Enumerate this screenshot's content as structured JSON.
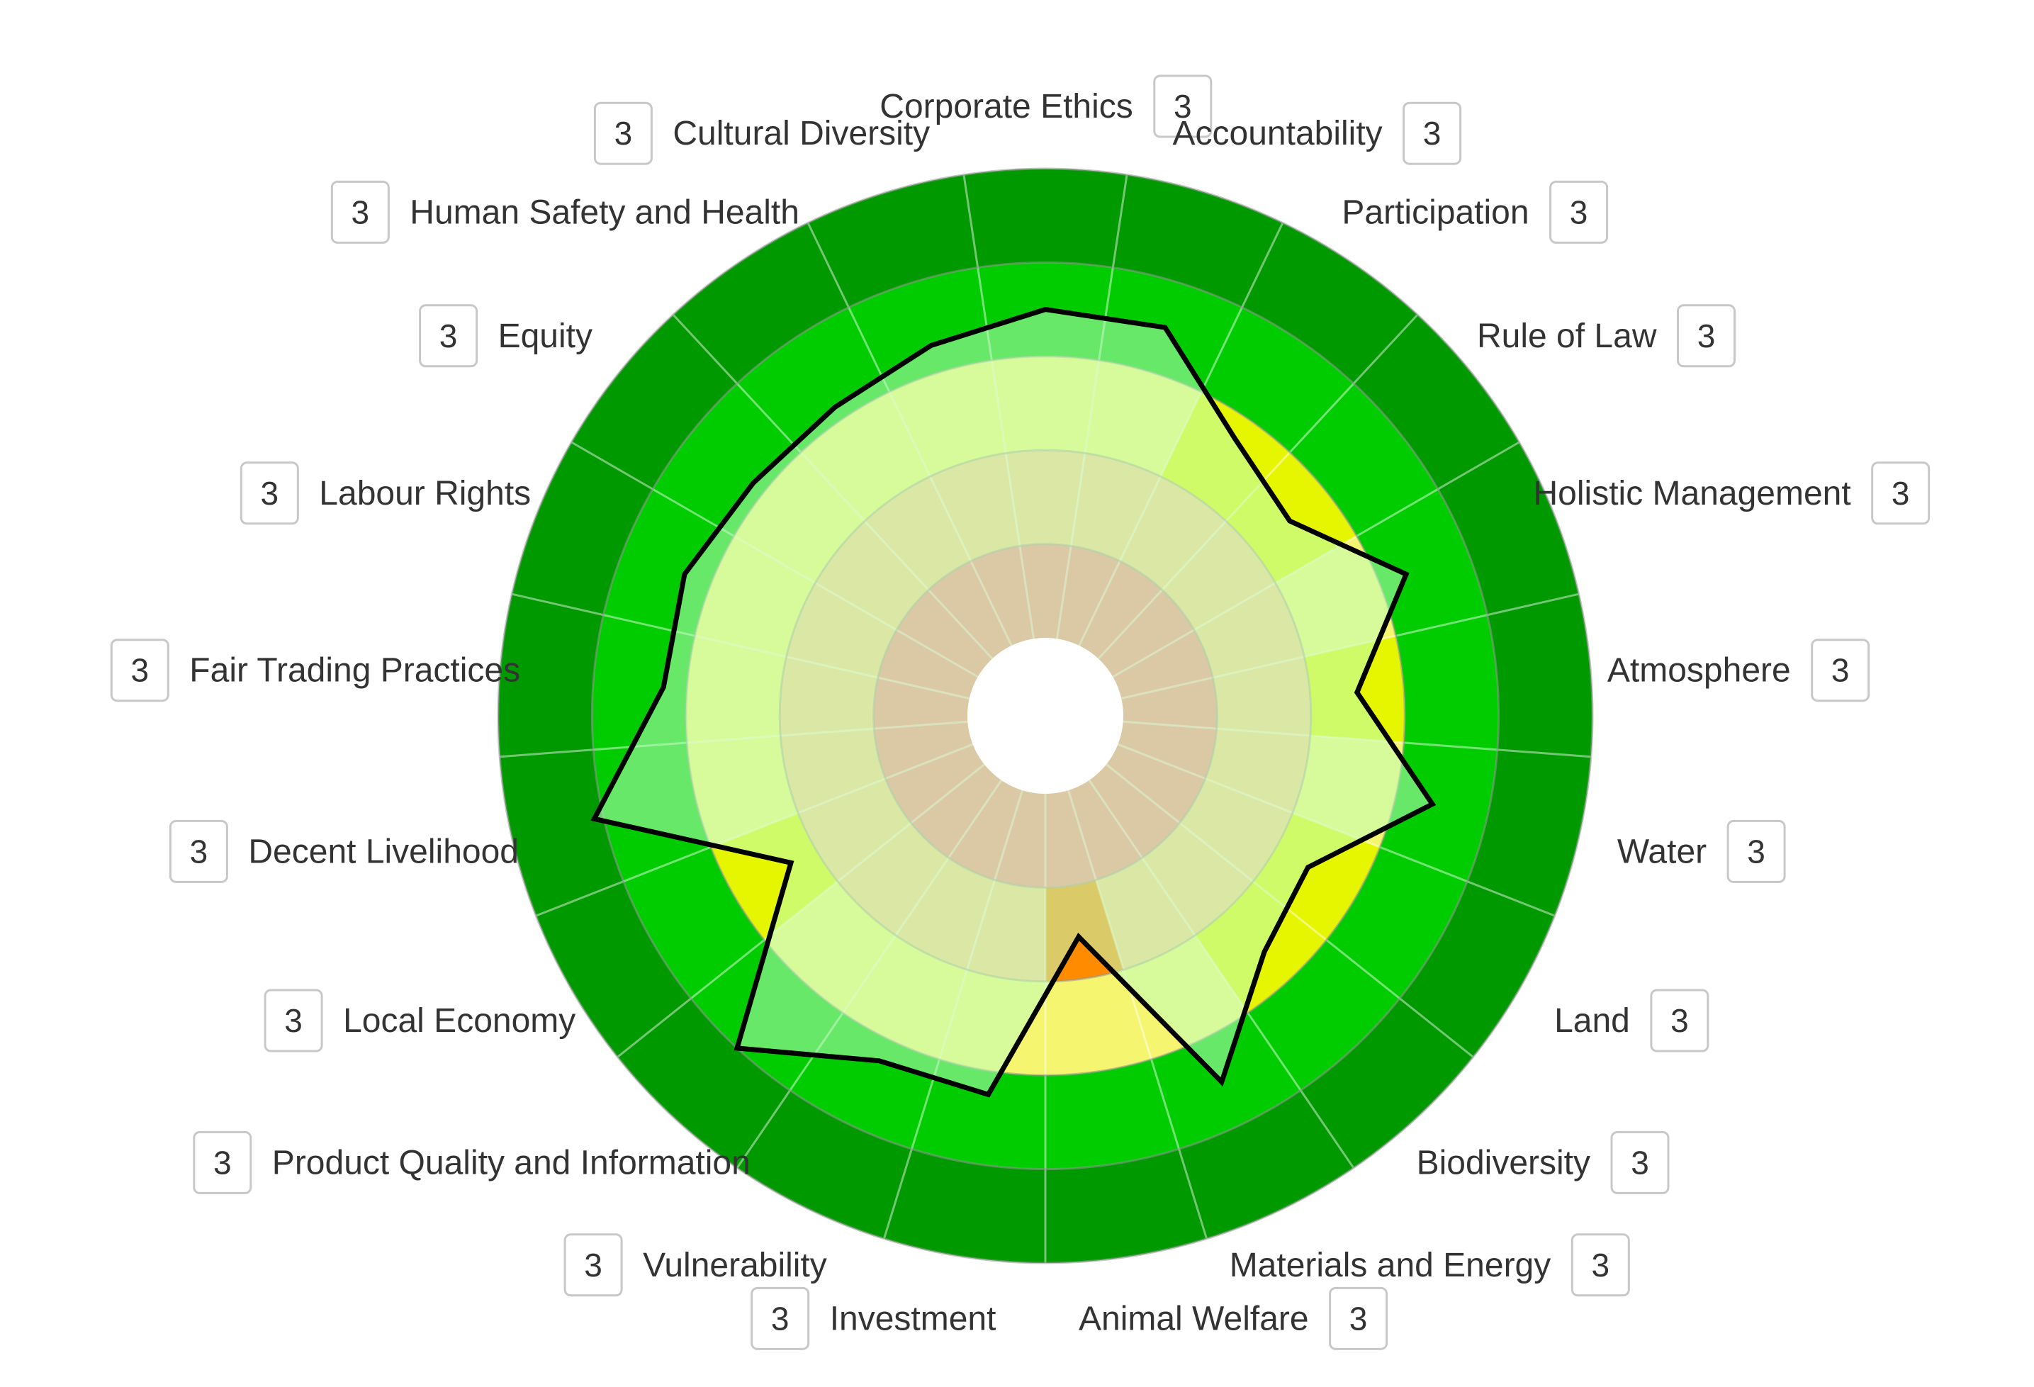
{
  "chart_data": {
    "type": "radar",
    "title": "",
    "scale_max": 100,
    "bands": [
      {
        "name": "unacceptable",
        "from": 0,
        "to": 20,
        "color": "#ff8888",
        "highlight": "#ff3030"
      },
      {
        "name": "poor",
        "from": 20,
        "to": 40,
        "color": "#ffcc88",
        "highlight": "#ff8c00"
      },
      {
        "name": "moderate",
        "from": 40,
        "to": 60,
        "color": "#f5f570",
        "highlight": "#e6f500"
      },
      {
        "name": "good",
        "from": 60,
        "to": 80,
        "color": "#00cc00",
        "highlight": "#00cc00"
      },
      {
        "name": "best",
        "from": 80,
        "to": 100,
        "color": "#009900",
        "highlight": "#009900"
      }
    ],
    "polygon_fill": "rgba(190,255,190,0.55)",
    "polygon_stroke": "#000000",
    "center_hole_color": "#ffffff",
    "categories": [
      "Corporate Ethics",
      "Accountability",
      "Participation",
      "Rule of Law",
      "Holistic Management",
      "Atmosphere",
      "Water",
      "Land",
      "Biodiversity",
      "Materials and Energy",
      "Animal Welfare",
      "Investment",
      "Vulnerability",
      "Product Quality and Information",
      "Local Economy",
      "Decent Livelihood",
      "Fair Trading Practices",
      "Labour Rights",
      "Equity",
      "Human Safety and Health",
      "Cultural Diversity"
    ],
    "values": [
      70,
      70,
      55,
      50,
      66,
      50,
      68,
      48,
      52,
      70,
      31,
      65,
      65,
      80,
      46,
      82,
      65,
      66,
      63,
      63,
      66
    ],
    "badges": [
      "3",
      "3",
      "3",
      "3",
      "3",
      "3",
      "3",
      "3",
      "3",
      "3",
      "3",
      "3",
      "3",
      "3",
      "3",
      "3",
      "3",
      "3",
      "3",
      "3",
      "3"
    ]
  }
}
